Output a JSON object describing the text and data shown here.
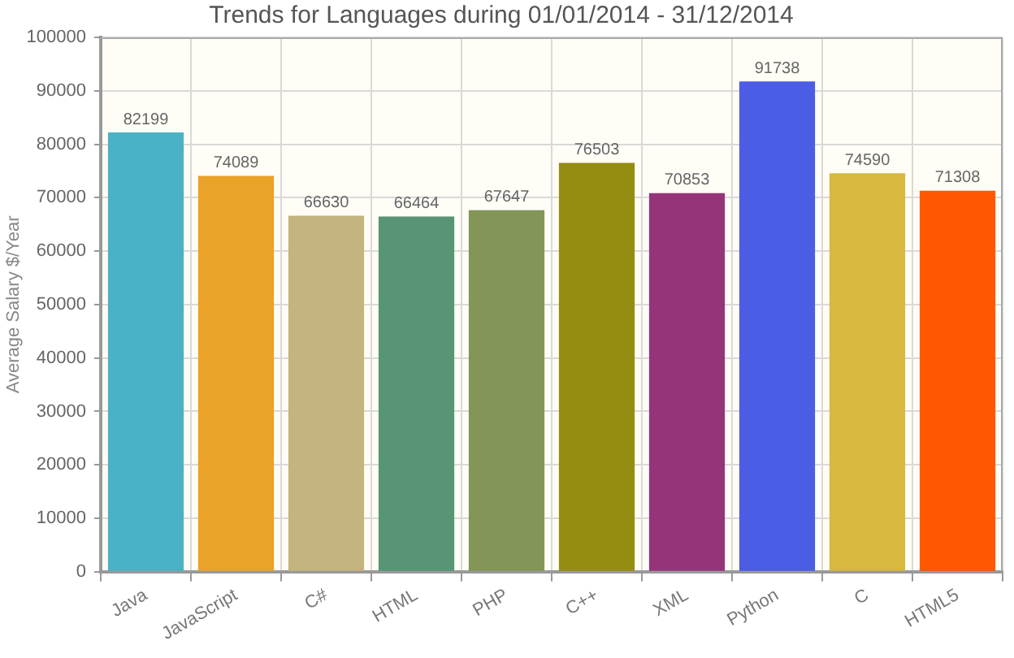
{
  "chart_data": {
    "type": "bar",
    "title": "Trends for Languages during 01/01/2014 - 31/12/2014",
    "ylabel": "Average Salary $/Year",
    "categories": [
      "Java",
      "JavaScript",
      "C#",
      "HTML",
      "PHP",
      "C++",
      "XML",
      "Python",
      "C",
      "HTML5"
    ],
    "values": [
      82199,
      74089,
      66630,
      66464,
      67647,
      76503,
      70853,
      91738,
      74590,
      71308
    ],
    "colors": [
      "#4bb2c5",
      "#eaa228",
      "#c5b47f",
      "#579575",
      "#839557",
      "#958c12",
      "#953579",
      "#4b5de4",
      "#d8b83f",
      "#ff5800"
    ],
    "ylim": [
      0,
      100000
    ],
    "yticks": [
      0,
      10000,
      20000,
      30000,
      40000,
      50000,
      60000,
      70000,
      80000,
      90000,
      100000
    ],
    "grid": true,
    "data_labels": true
  }
}
